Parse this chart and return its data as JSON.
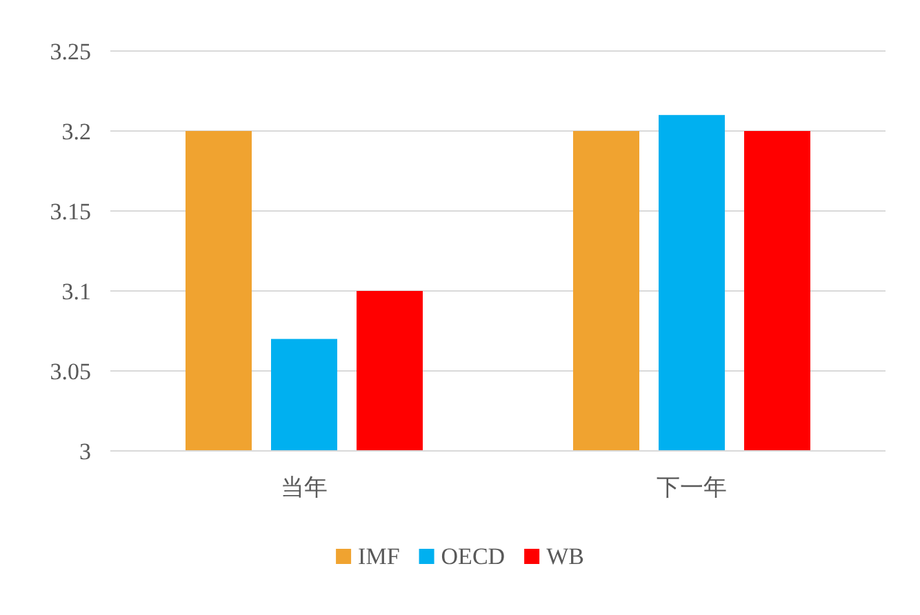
{
  "chart_data": {
    "type": "bar",
    "categories": [
      "当年",
      "下一年"
    ],
    "series": [
      {
        "name": "IMF",
        "color": "#f0a330",
        "values": [
          3.2,
          3.2
        ]
      },
      {
        "name": "OECD",
        "color": "#00b0f0",
        "values": [
          3.07,
          3.21
        ]
      },
      {
        "name": "WB",
        "color": "#ff0000",
        "values": [
          3.1,
          3.2
        ]
      }
    ],
    "ylim": [
      3,
      3.25
    ],
    "yticks": [
      3,
      3.05,
      3.1,
      3.15,
      3.2,
      3.25
    ],
    "grid": "y",
    "legend": "bottom"
  }
}
